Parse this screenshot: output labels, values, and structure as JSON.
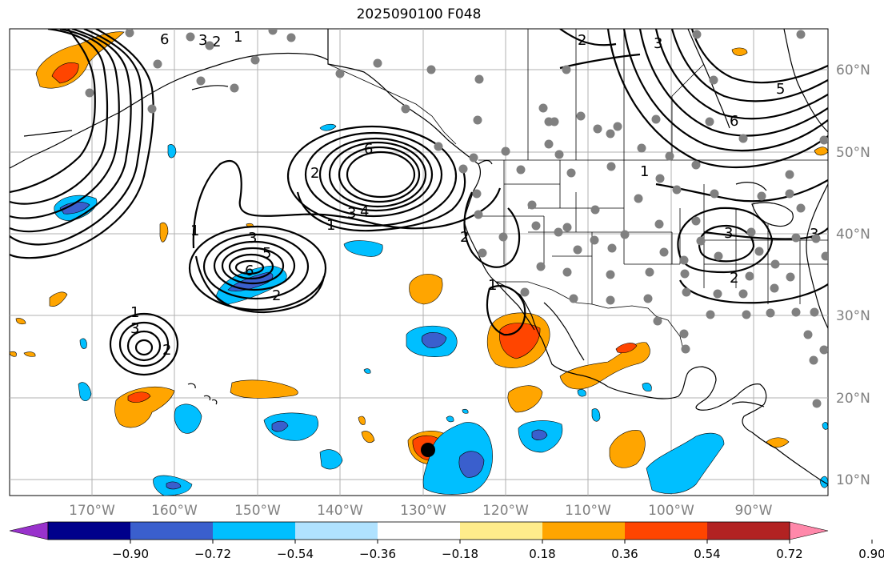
{
  "title": "2025090100 F048",
  "lat_labels": [
    "60°N",
    "50°N",
    "40°N",
    "30°N",
    "20°N",
    "10°N"
  ],
  "lon_labels": [
    "170°W",
    "160°W",
    "150°W",
    "140°W",
    "130°W",
    "120°W",
    "110°W",
    "100°W",
    "90°W"
  ],
  "colorbar": {
    "tick_labels": [
      "−0.90",
      "−0.72",
      "−0.54",
      "−0.36",
      "−0.18",
      "0.18",
      "0.36",
      "0.54",
      "0.72",
      "0.90"
    ],
    "colors": [
      "#9932cc",
      "#00008b",
      "#3a5fcd",
      "#00bfff",
      "#b0e2ff",
      "#ffffff",
      "#ffec8b",
      "#ffa500",
      "#ff4500",
      "#b22222",
      "#ff88aa"
    ]
  },
  "contour_labels": [
    "1",
    "2",
    "3",
    "4",
    "5",
    "6"
  ],
  "colors": {
    "grid": "#b0b0b0",
    "station_dot": "#808080",
    "contour": "#000000"
  }
}
